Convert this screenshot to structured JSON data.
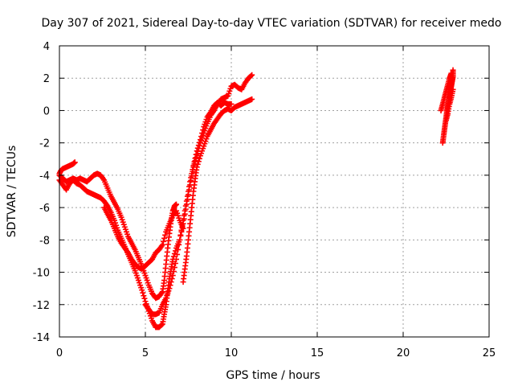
{
  "chart_data": {
    "type": "scatter",
    "title": "Day 307 of 2021, Sidereal Day-to-day VTEC variation (SDTVAR) for receiver medo",
    "xlabel": "GPS time / hours",
    "ylabel": "SDTVAR / TECUs",
    "xlim": [
      0,
      25
    ],
    "ylim": [
      -14,
      4
    ],
    "xticks": [
      0,
      5,
      10,
      15,
      20,
      25
    ],
    "yticks": [
      -14,
      -12,
      -10,
      -8,
      -6,
      -4,
      -2,
      0,
      2,
      4
    ],
    "grid": true,
    "marker": "+",
    "color": "#ff0000",
    "series": [
      {
        "points": [
          [
            0.0,
            -4.3
          ],
          [
            0.2,
            -4.6
          ],
          [
            0.4,
            -4.9
          ],
          [
            0.6,
            -4.5
          ],
          [
            0.8,
            -4.3
          ],
          [
            1.0,
            -4.5
          ],
          [
            1.2,
            -4.6
          ],
          [
            1.4,
            -4.8
          ],
          [
            1.6,
            -5.0
          ],
          [
            1.8,
            -5.1
          ],
          [
            2.0,
            -5.2
          ],
          [
            2.2,
            -5.3
          ],
          [
            2.4,
            -5.4
          ],
          [
            2.6,
            -5.6
          ],
          [
            2.8,
            -5.9
          ],
          [
            3.0,
            -6.3
          ],
          [
            3.2,
            -6.8
          ],
          [
            3.4,
            -7.4
          ],
          [
            3.6,
            -7.9
          ],
          [
            3.8,
            -8.4
          ],
          [
            4.0,
            -8.9
          ],
          [
            4.2,
            -9.4
          ],
          [
            4.4,
            -9.9
          ],
          [
            4.6,
            -10.5
          ],
          [
            4.8,
            -11.1
          ],
          [
            5.0,
            -11.8
          ],
          [
            5.2,
            -12.4
          ],
          [
            5.4,
            -13.0
          ],
          [
            5.6,
            -13.4
          ],
          [
            5.8,
            -13.4
          ],
          [
            6.0,
            -13.2
          ],
          [
            6.1,
            -12.6
          ],
          [
            6.2,
            -12.0
          ],
          [
            6.3,
            -11.2
          ],
          [
            6.4,
            -10.4
          ],
          [
            6.5,
            -9.8
          ],
          [
            6.6,
            -9.2
          ],
          [
            6.8,
            -8.5
          ],
          [
            7.0,
            -8.0
          ],
          [
            7.2,
            -7.0
          ],
          [
            7.4,
            -5.8
          ],
          [
            7.6,
            -4.6
          ],
          [
            7.8,
            -3.5
          ],
          [
            8.0,
            -2.7
          ],
          [
            8.2,
            -2.0
          ],
          [
            8.4,
            -1.4
          ],
          [
            8.6,
            -0.8
          ],
          [
            8.8,
            -0.3
          ],
          [
            9.0,
            0.0
          ],
          [
            9.2,
            0.4
          ],
          [
            9.4,
            0.7
          ],
          [
            9.6,
            0.8
          ],
          [
            9.8,
            0.9
          ],
          [
            10.0,
            1.5
          ],
          [
            10.2,
            1.6
          ],
          [
            10.4,
            1.4
          ],
          [
            10.6,
            1.3
          ],
          [
            10.8,
            1.7
          ],
          [
            11.0,
            2.0
          ],
          [
            11.2,
            2.2
          ]
        ]
      },
      {
        "points": [
          [
            0.0,
            -3.9
          ],
          [
            0.1,
            -3.7
          ],
          [
            0.2,
            -3.6
          ],
          [
            0.4,
            -3.5
          ],
          [
            0.6,
            -3.4
          ],
          [
            0.8,
            -3.3
          ],
          [
            0.9,
            -3.2
          ],
          [
            0.0,
            -4.0
          ],
          [
            0.2,
            -4.2
          ],
          [
            0.4,
            -4.4
          ],
          [
            0.6,
            -4.3
          ],
          [
            0.8,
            -4.2
          ],
          [
            1.0,
            -4.3
          ],
          [
            1.2,
            -4.2
          ],
          [
            1.4,
            -4.3
          ],
          [
            1.6,
            -4.4
          ],
          [
            1.8,
            -4.2
          ],
          [
            2.0,
            -4.0
          ],
          [
            2.2,
            -3.9
          ],
          [
            2.4,
            -4.0
          ],
          [
            2.6,
            -4.3
          ],
          [
            2.8,
            -4.8
          ],
          [
            3.0,
            -5.3
          ],
          [
            3.2,
            -5.7
          ],
          [
            3.4,
            -6.1
          ],
          [
            3.6,
            -6.6
          ],
          [
            3.8,
            -7.2
          ],
          [
            4.0,
            -7.8
          ],
          [
            4.2,
            -8.2
          ],
          [
            4.4,
            -8.6
          ],
          [
            4.6,
            -9.1
          ],
          [
            4.8,
            -9.6
          ],
          [
            5.0,
            -10.2
          ],
          [
            5.2,
            -10.8
          ],
          [
            5.4,
            -11.3
          ],
          [
            5.6,
            -11.6
          ],
          [
            5.8,
            -11.5
          ],
          [
            6.0,
            -11.2
          ],
          [
            6.1,
            -10.5
          ],
          [
            6.2,
            -9.5
          ],
          [
            6.3,
            -8.5
          ],
          [
            6.4,
            -7.6
          ],
          [
            6.5,
            -6.8
          ],
          [
            6.6,
            -6.2
          ],
          [
            6.7,
            -5.9
          ],
          [
            6.8,
            -5.8
          ]
        ]
      },
      {
        "points": [
          [
            2.6,
            -6.0
          ],
          [
            2.8,
            -6.4
          ],
          [
            3.0,
            -6.8
          ],
          [
            3.2,
            -7.3
          ],
          [
            3.4,
            -7.8
          ],
          [
            3.6,
            -8.2
          ],
          [
            3.8,
            -8.5
          ],
          [
            4.0,
            -8.8
          ],
          [
            4.2,
            -9.2
          ],
          [
            4.4,
            -9.5
          ],
          [
            4.6,
            -9.7
          ],
          [
            4.8,
            -9.8
          ],
          [
            5.0,
            -9.6
          ],
          [
            5.2,
            -9.4
          ],
          [
            5.4,
            -9.2
          ],
          [
            5.6,
            -8.8
          ],
          [
            5.8,
            -8.6
          ],
          [
            6.0,
            -8.3
          ],
          [
            6.2,
            -7.5
          ],
          [
            6.4,
            -7.0
          ],
          [
            6.6,
            -6.5
          ],
          [
            6.8,
            -6.2
          ],
          [
            7.0,
            -6.8
          ],
          [
            7.2,
            -7.3
          ],
          [
            7.2,
            -10.6
          ],
          [
            7.3,
            -9.8
          ],
          [
            7.4,
            -9.0
          ],
          [
            7.5,
            -8.0
          ],
          [
            7.6,
            -7.0
          ],
          [
            7.7,
            -6.0
          ],
          [
            7.8,
            -5.0
          ],
          [
            7.9,
            -4.2
          ],
          [
            8.0,
            -3.5
          ],
          [
            8.2,
            -2.8
          ],
          [
            8.4,
            -2.2
          ],
          [
            8.6,
            -1.6
          ],
          [
            8.8,
            -1.2
          ],
          [
            9.0,
            -0.8
          ],
          [
            9.2,
            -0.5
          ],
          [
            9.4,
            -0.2
          ],
          [
            9.6,
            0.0
          ],
          [
            9.8,
            0.1
          ],
          [
            10.0,
            0.0
          ],
          [
            10.2,
            0.2
          ],
          [
            10.4,
            0.3
          ],
          [
            10.6,
            0.4
          ],
          [
            10.8,
            0.5
          ],
          [
            11.0,
            0.6
          ],
          [
            11.2,
            0.7
          ]
        ]
      },
      {
        "points": [
          [
            5.0,
            -12.0
          ],
          [
            5.2,
            -12.3
          ],
          [
            5.4,
            -12.6
          ],
          [
            5.6,
            -12.6
          ],
          [
            5.8,
            -12.5
          ],
          [
            6.0,
            -12.0
          ],
          [
            6.2,
            -11.6
          ],
          [
            6.4,
            -11.0
          ],
          [
            6.6,
            -10.2
          ],
          [
            6.8,
            -9.2
          ],
          [
            7.0,
            -8.0
          ],
          [
            7.2,
            -6.8
          ],
          [
            7.4,
            -5.6
          ],
          [
            7.6,
            -4.4
          ],
          [
            7.8,
            -3.4
          ],
          [
            8.0,
            -2.5
          ],
          [
            8.2,
            -1.8
          ],
          [
            8.4,
            -1.0
          ],
          [
            8.6,
            -0.4
          ],
          [
            8.8,
            -0.1
          ],
          [
            9.0,
            0.3
          ],
          [
            9.2,
            0.5
          ],
          [
            9.4,
            0.3
          ],
          [
            9.6,
            0.5
          ],
          [
            9.8,
            0.4
          ],
          [
            10.0,
            0.4
          ]
        ]
      },
      {
        "points": [
          [
            22.3,
            -2.0
          ],
          [
            22.35,
            -1.6
          ],
          [
            22.4,
            -1.2
          ],
          [
            22.45,
            -0.8
          ],
          [
            22.5,
            -0.4
          ],
          [
            22.55,
            0.0
          ],
          [
            22.6,
            0.3
          ],
          [
            22.65,
            0.6
          ],
          [
            22.7,
            0.9
          ],
          [
            22.75,
            1.2
          ],
          [
            22.8,
            1.5
          ],
          [
            22.85,
            1.8
          ],
          [
            22.9,
            2.1
          ],
          [
            22.9,
            2.5
          ],
          [
            22.2,
            0.0
          ],
          [
            22.3,
            0.4
          ],
          [
            22.4,
            0.8
          ],
          [
            22.5,
            1.2
          ],
          [
            22.6,
            1.6
          ],
          [
            22.7,
            2.0
          ],
          [
            22.8,
            2.3
          ],
          [
            22.5,
            -0.6
          ],
          [
            22.6,
            -0.2
          ],
          [
            22.7,
            0.4
          ],
          [
            22.8,
            0.8
          ],
          [
            22.9,
            1.3
          ]
        ]
      }
    ]
  }
}
